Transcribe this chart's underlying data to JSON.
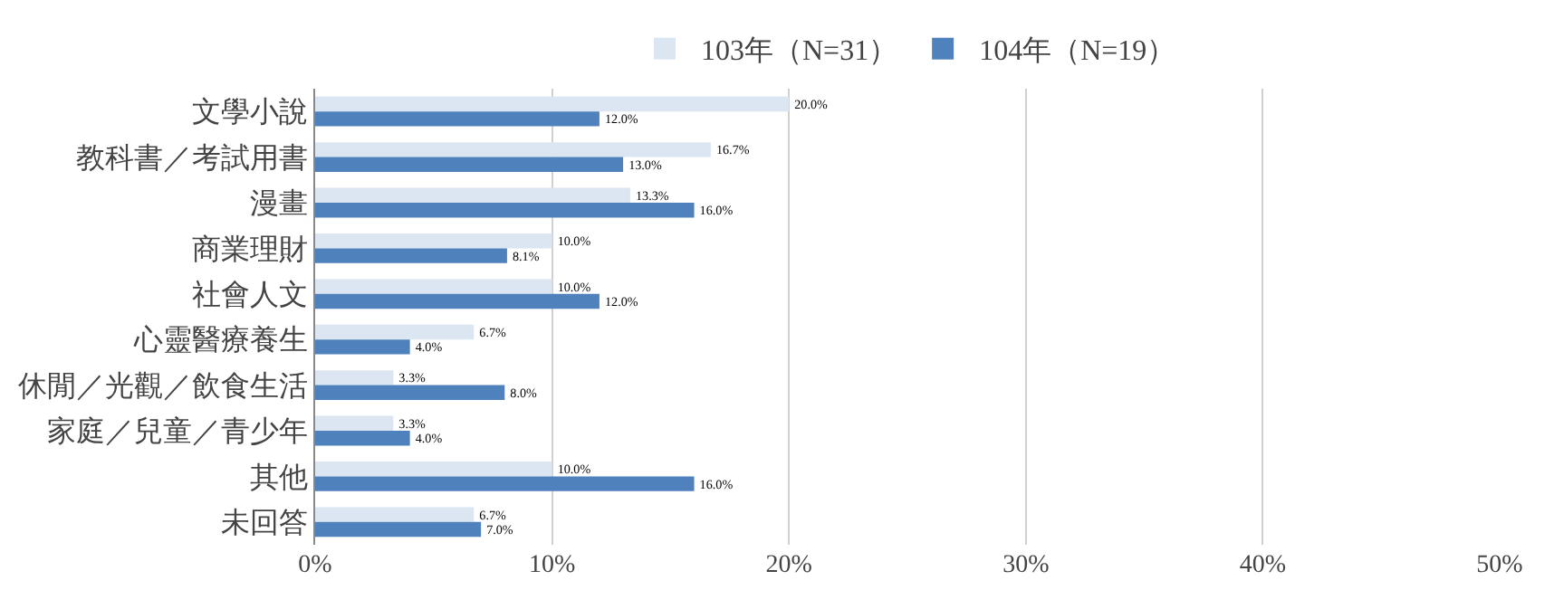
{
  "chart_data": {
    "type": "bar",
    "orientation": "horizontal",
    "categories": [
      "文學小說",
      "教科書／考試用書",
      "漫畫",
      "商業理財",
      "社會人文",
      "心靈醫療養生",
      "休閒／光觀／飲食生活",
      "家庭／兒童／青少年",
      "其他",
      "未回答"
    ],
    "series": [
      {
        "name": "103年（N=31）",
        "color": "#dce6f2",
        "values": [
          20.0,
          16.7,
          13.3,
          10.0,
          10.0,
          6.7,
          3.3,
          3.3,
          10.0,
          6.7
        ],
        "value_labels": [
          "20.0%",
          "16.7%",
          "13.3%",
          "10.0%",
          "10.0%",
          "6.7%",
          "3.3%",
          "3.3%",
          "10.0%",
          "6.7%"
        ]
      },
      {
        "name": "104年（N=19）",
        "color": "#4f81bd",
        "values": [
          12.0,
          13.0,
          16.0,
          8.1,
          12.0,
          4.0,
          8.0,
          4.0,
          16.0,
          7.0
        ],
        "value_labels": [
          "12.0%",
          "13.0%",
          "16.0%",
          "8.1%",
          "12.0%",
          "4.0%",
          "8.0%",
          "4.0%",
          "16.0%",
          "7.0%"
        ]
      }
    ],
    "xlim": [
      0,
      50
    ],
    "xticks": [
      {
        "value": 0,
        "label": "0%"
      },
      {
        "value": 10,
        "label": "10%"
      },
      {
        "value": 20,
        "label": "20%"
      },
      {
        "value": 30,
        "label": "30%"
      },
      {
        "value": 40,
        "label": "40%"
      },
      {
        "value": 50,
        "label": "50%"
      }
    ],
    "grid": "x",
    "legend": "top"
  }
}
